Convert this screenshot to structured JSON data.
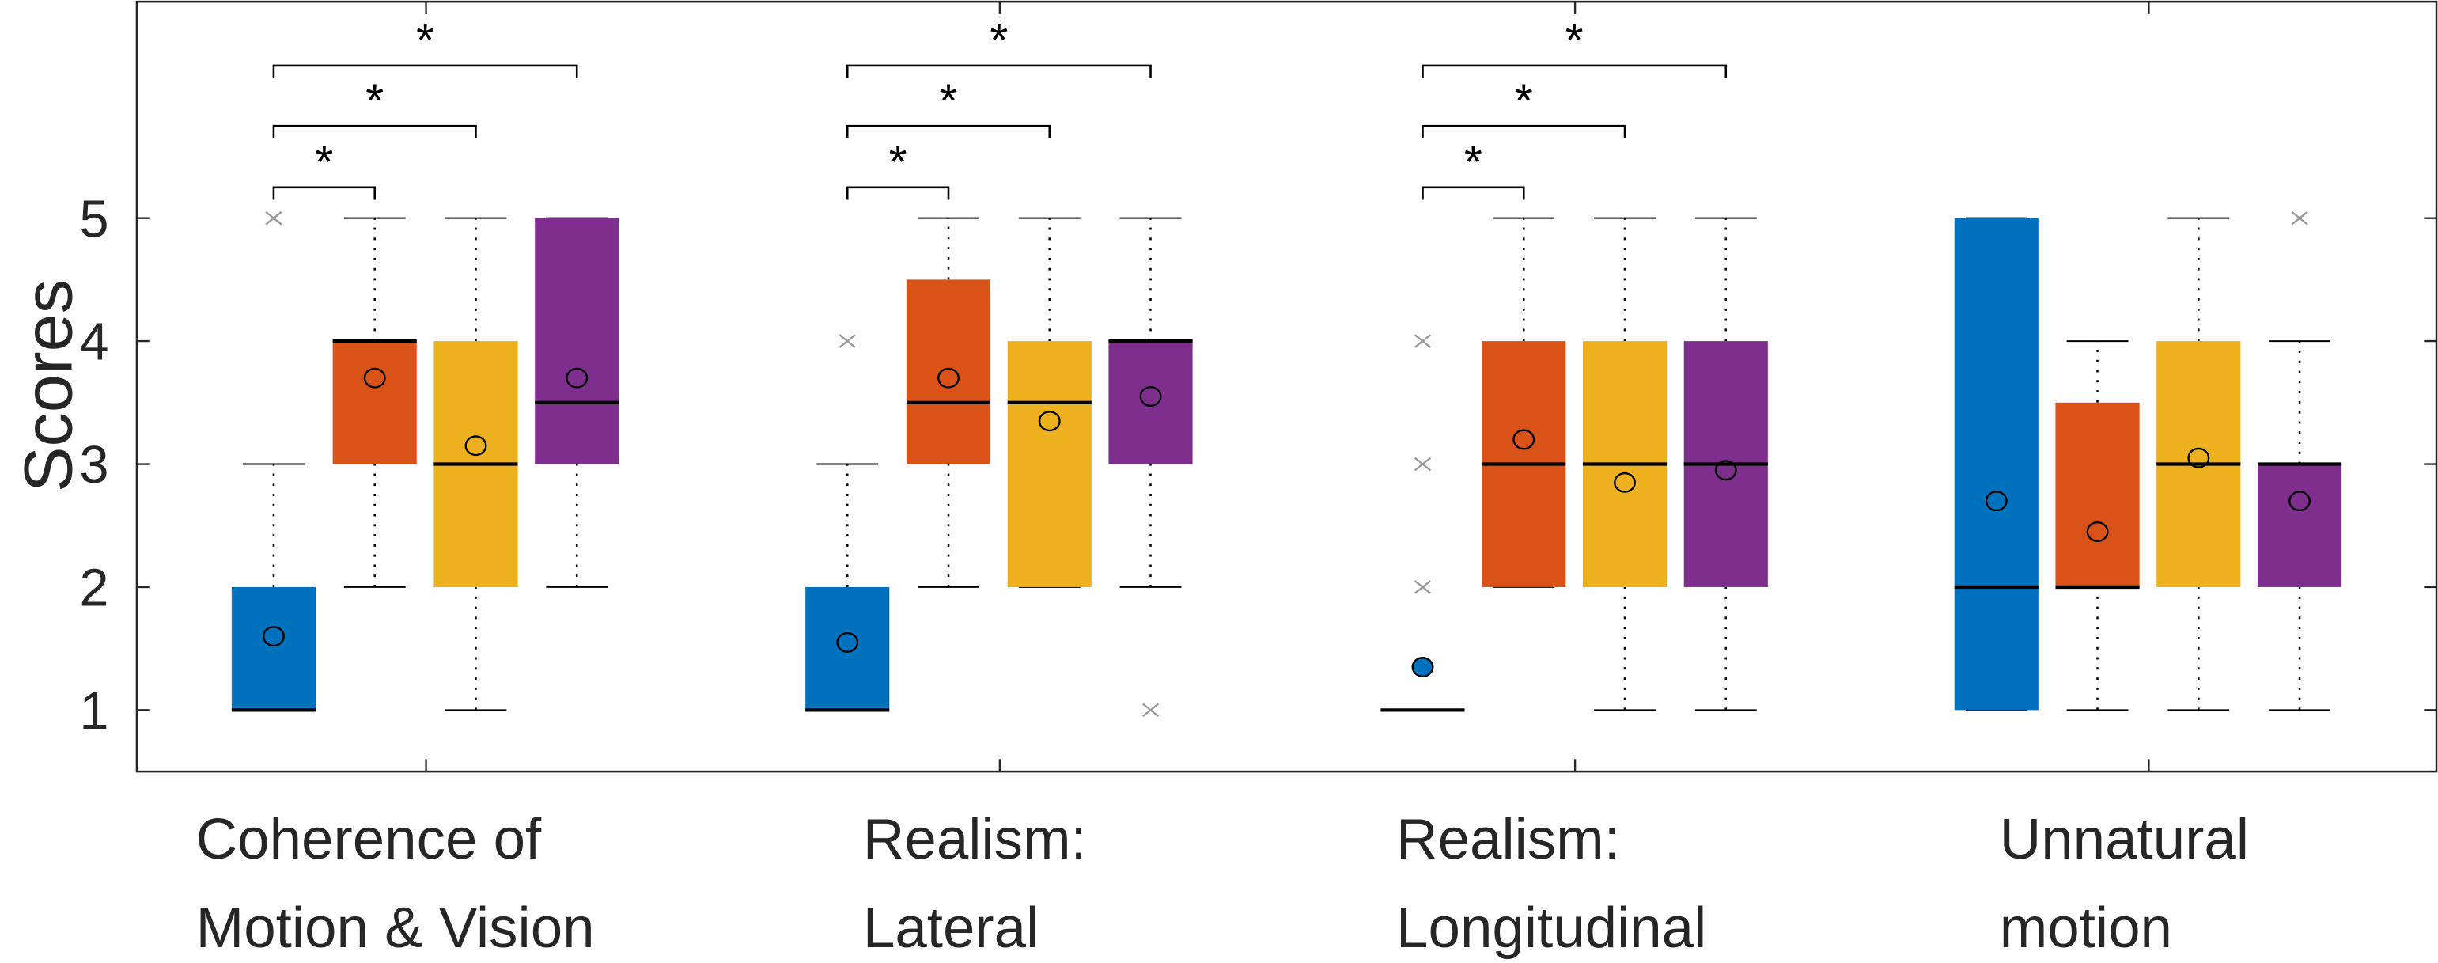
{
  "chart_data": {
    "type": "box",
    "ylabel": "Scores",
    "ylim": [
      0.5,
      6.76
    ],
    "yticks": [
      "1",
      "2",
      "3",
      "4",
      "5"
    ],
    "colors": [
      "#0072BD",
      "#D95319",
      "#EDB120",
      "#7E2F8E"
    ],
    "significance_marker": "*",
    "groups": [
      {
        "label_lines": [
          "Coherence of",
          "Motion & Vision"
        ],
        "boxes": [
          {
            "q1": 1,
            "q3": 2,
            "median": 1,
            "whisker_low": 1,
            "whisker_high": 3,
            "mean": 1.6,
            "outliers": [
              5
            ]
          },
          {
            "q1": 3,
            "q3": 4,
            "median": 4,
            "whisker_low": 2,
            "whisker_high": 5,
            "mean": 3.7,
            "outliers": []
          },
          {
            "q1": 2,
            "q3": 4,
            "median": 3,
            "whisker_low": 1,
            "whisker_high": 5,
            "mean": 3.15,
            "outliers": []
          },
          {
            "q1": 3,
            "q3": 5,
            "median": 3.5,
            "whisker_low": 2,
            "whisker_high": 5,
            "mean": 3.7,
            "outliers": []
          }
        ],
        "significance": [
          [
            0,
            1
          ],
          [
            0,
            2
          ],
          [
            0,
            3
          ]
        ]
      },
      {
        "label_lines": [
          "Realism:",
          "Lateral"
        ],
        "boxes": [
          {
            "q1": 1,
            "q3": 2,
            "median": 1,
            "whisker_low": 1,
            "whisker_high": 3,
            "mean": 1.55,
            "outliers": [
              4
            ]
          },
          {
            "q1": 3,
            "q3": 4.5,
            "median": 3.5,
            "whisker_low": 2,
            "whisker_high": 5,
            "mean": 3.7,
            "outliers": []
          },
          {
            "q1": 2,
            "q3": 4,
            "median": 3.5,
            "whisker_low": 2,
            "whisker_high": 5,
            "mean": 3.35,
            "outliers": []
          },
          {
            "q1": 3,
            "q3": 4,
            "median": 4,
            "whisker_low": 2,
            "whisker_high": 5,
            "mean": 3.55,
            "outliers": [
              1
            ]
          }
        ],
        "significance": [
          [
            0,
            1
          ],
          [
            0,
            2
          ],
          [
            0,
            3
          ]
        ]
      },
      {
        "label_lines": [
          "Realism:",
          "Longitudinal"
        ],
        "boxes": [
          {
            "q1": 1,
            "q3": 1,
            "median": 1,
            "whisker_low": 1,
            "whisker_high": 1,
            "mean": 1.35,
            "outliers": [
              2,
              3,
              4
            ]
          },
          {
            "q1": 2,
            "q3": 4,
            "median": 3,
            "whisker_low": 2,
            "whisker_high": 5,
            "mean": 3.2,
            "outliers": []
          },
          {
            "q1": 2,
            "q3": 4,
            "median": 3,
            "whisker_low": 1,
            "whisker_high": 5,
            "mean": 2.85,
            "outliers": []
          },
          {
            "q1": 2,
            "q3": 4,
            "median": 3,
            "whisker_low": 1,
            "whisker_high": 5,
            "mean": 2.95,
            "outliers": []
          }
        ],
        "significance": [
          [
            0,
            1
          ],
          [
            0,
            2
          ],
          [
            0,
            3
          ]
        ]
      },
      {
        "label_lines": [
          "Unnatural",
          "motion"
        ],
        "boxes": [
          {
            "q1": 1,
            "q3": 5,
            "median": 2,
            "whisker_low": 1,
            "whisker_high": 5,
            "mean": 2.7,
            "outliers": []
          },
          {
            "q1": 2,
            "q3": 3.5,
            "median": 2,
            "whisker_low": 1,
            "whisker_high": 4,
            "mean": 2.45,
            "outliers": []
          },
          {
            "q1": 2,
            "q3": 4,
            "median": 3,
            "whisker_low": 1,
            "whisker_high": 5,
            "mean": 3.05,
            "outliers": []
          },
          {
            "q1": 2,
            "q3": 3,
            "median": 3,
            "whisker_low": 1,
            "whisker_high": 4,
            "mean": 2.7,
            "outliers": [
              5
            ]
          }
        ],
        "significance": []
      }
    ]
  }
}
